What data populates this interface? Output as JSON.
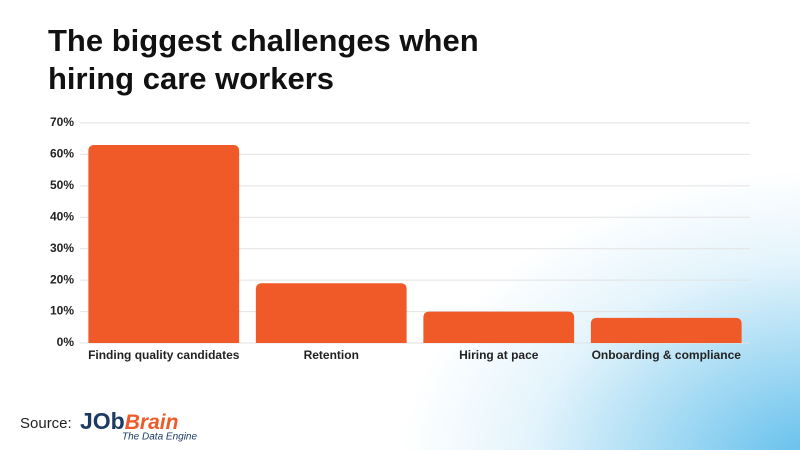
{
  "chart_data": {
    "type": "bar",
    "title": "The biggest challenges when hiring care workers",
    "categories": [
      "Finding quality candidates",
      "Retention",
      "Hiring at pace",
      "Onboarding & compliance"
    ],
    "values": [
      63,
      19,
      10,
      8
    ],
    "color": "#f05a28",
    "ylim": [
      0,
      70
    ],
    "yticks": [
      {
        "value": 0,
        "label": "0%"
      },
      {
        "value": 10,
        "label": "10%"
      },
      {
        "value": 20,
        "label": "20%"
      },
      {
        "value": 30,
        "label": "30%"
      },
      {
        "value": 40,
        "label": "40%"
      },
      {
        "value": 50,
        "label": "50%"
      },
      {
        "value": 60,
        "label": "60%"
      },
      {
        "value": 70,
        "label": "70%"
      }
    ],
    "grid": true
  },
  "source": {
    "label": "Source:",
    "brand": [
      "JOb",
      "Brain"
    ],
    "tagline": "The Data Engine"
  }
}
